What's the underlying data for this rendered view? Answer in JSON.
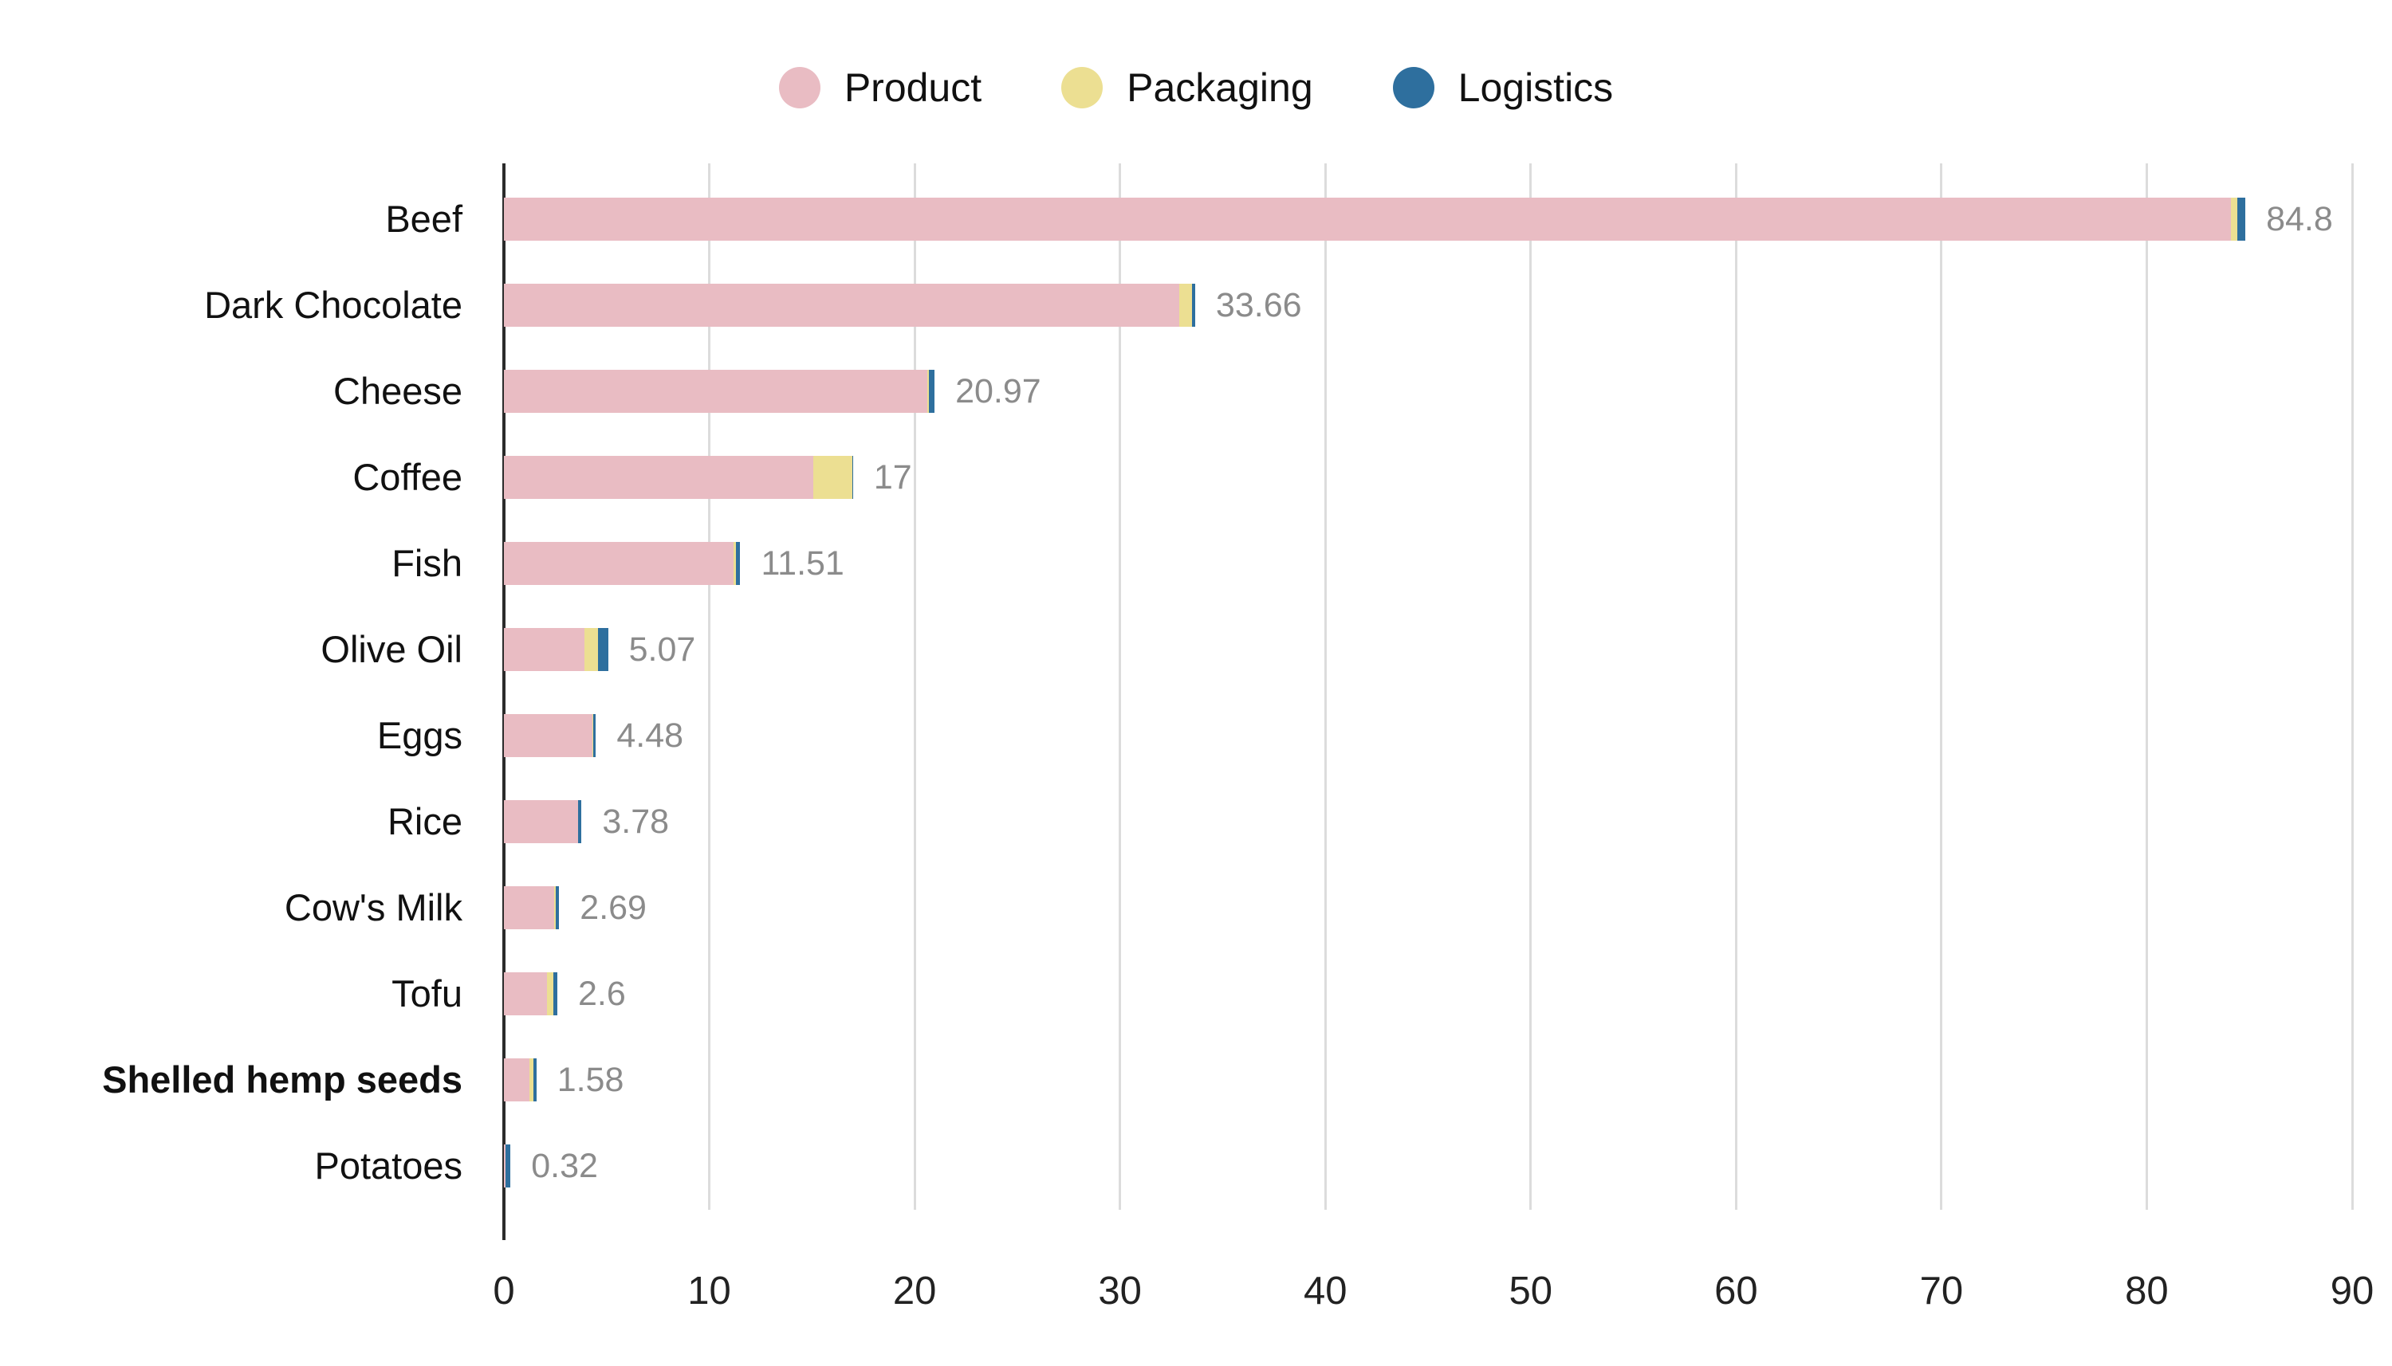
{
  "chart_data": {
    "type": "bar",
    "orientation": "horizontal",
    "stacked": true,
    "title": "",
    "xlabel": "",
    "ylabel": "",
    "xlim": [
      0,
      90
    ],
    "xticks": [
      0,
      10,
      20,
      30,
      40,
      50,
      60,
      70,
      80,
      90
    ],
    "grid": true,
    "legend_position": "top",
    "categories": [
      "Beef",
      "Dark Chocolate",
      "Cheese",
      "Coffee",
      "Fish",
      "Olive Oil",
      "Eggs",
      "Rice",
      "Cow's Milk",
      "Tofu",
      "Shelled hemp seeds",
      "Potatoes"
    ],
    "highlighted_category": "Shelled hemp seeds",
    "series": [
      {
        "name": "Product",
        "color": "#e9bcc3",
        "values": [
          84.1,
          32.9,
          20.6,
          15.05,
          11.2,
          3.93,
          4.3,
          3.6,
          2.45,
          2.1,
          1.25,
          0.07
        ]
      },
      {
        "name": "Packaging",
        "color": "#ecdf92",
        "values": [
          0.3,
          0.6,
          0.1,
          1.9,
          0.1,
          0.65,
          0.05,
          0.03,
          0.07,
          0.3,
          0.17,
          0.02
        ]
      },
      {
        "name": "Logistics",
        "color": "#2e6f9e",
        "values": [
          0.4,
          0.16,
          0.27,
          0.05,
          0.21,
          0.49,
          0.13,
          0.15,
          0.17,
          0.2,
          0.16,
          0.23
        ]
      }
    ],
    "total_labels": [
      "84.8",
      "33.66",
      "20.97",
      "17",
      "11.51",
      "5.07",
      "4.48",
      "3.78",
      "2.69",
      "2.6",
      "1.58",
      "0.32"
    ],
    "colors": {
      "gridline": "#dcdcdc",
      "axis_line": "#2b2b2b",
      "value_label": "#8b8b8b",
      "text": "#111111",
      "background": "#ffffff"
    }
  }
}
